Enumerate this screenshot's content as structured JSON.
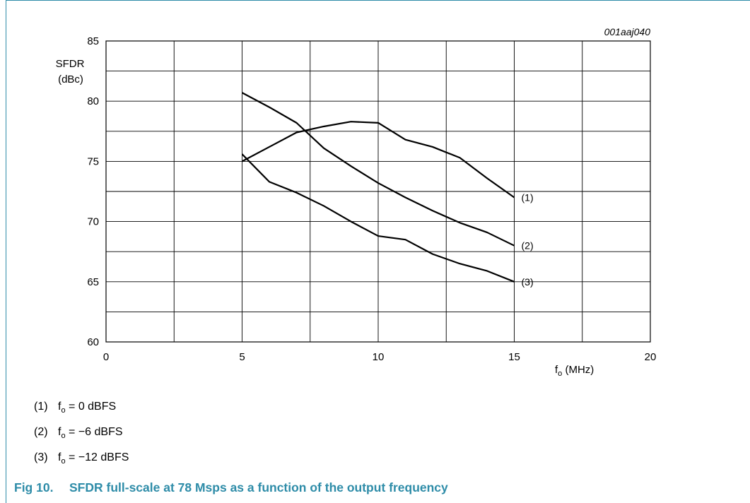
{
  "chart_data": {
    "type": "line",
    "id_label": "001aaj040",
    "ylabel_line1": "SFDR",
    "ylabel_line2": "(dBc)",
    "xlabel_main": "f",
    "xlabel_sub": "o",
    "xlabel_unit": " (MHz)",
    "xlim": [
      0,
      20
    ],
    "ylim": [
      60,
      85
    ],
    "x_ticks": [
      "0",
      "5",
      "10",
      "15",
      "20"
    ],
    "y_ticks": [
      "60",
      "65",
      "70",
      "75",
      "80",
      "85"
    ],
    "grid": true,
    "series": [
      {
        "name": "(1)",
        "x": [
          5,
          6,
          7,
          8,
          9,
          10,
          11,
          12,
          13,
          14,
          15
        ],
        "y": [
          75.0,
          76.2,
          77.4,
          77.9,
          78.3,
          78.2,
          76.8,
          76.2,
          75.3,
          73.6,
          72.0
        ]
      },
      {
        "name": "(2)",
        "x": [
          5,
          6,
          7,
          8,
          9,
          10,
          11,
          12,
          13,
          14,
          15
        ],
        "y": [
          80.7,
          79.5,
          78.2,
          76.1,
          74.6,
          73.2,
          72.0,
          70.9,
          69.9,
          69.1,
          68.0
        ]
      },
      {
        "name": "(3)",
        "x": [
          5,
          6,
          7,
          8,
          9,
          10,
          11,
          12,
          13,
          14,
          15
        ],
        "y": [
          75.6,
          73.3,
          72.4,
          71.3,
          70.0,
          68.8,
          68.5,
          67.3,
          66.5,
          65.9,
          65.0
        ]
      }
    ]
  },
  "legend": [
    {
      "num": "(1)",
      "f": "f",
      "sub": "o",
      "value": " = 0 dBFS"
    },
    {
      "num": "(2)",
      "f": "f",
      "sub": "o",
      "value": " = −6 dBFS"
    },
    {
      "num": "(3)",
      "f": "f",
      "sub": "o",
      "value": " = −12 dBFS"
    }
  ],
  "caption": {
    "fig": "Fig 10.",
    "title": "SFDR full-scale at 78 Msps as a function of the output frequency"
  }
}
